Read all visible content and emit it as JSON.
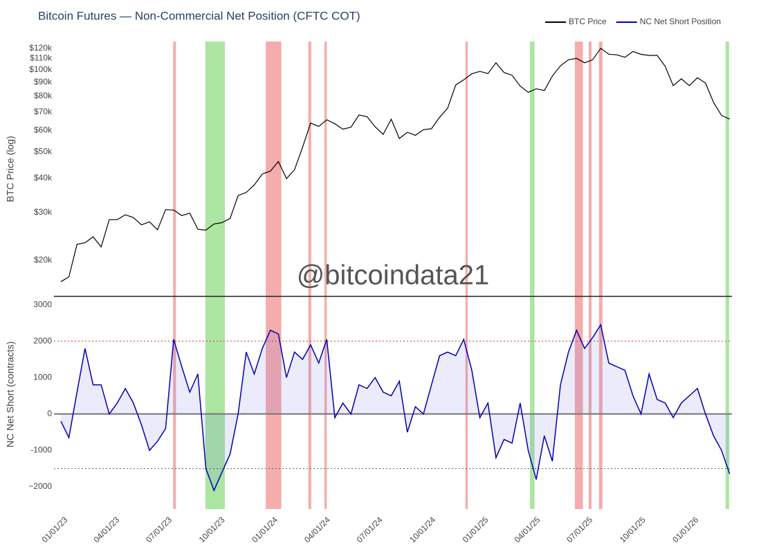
{
  "chart_data": [
    {
      "type": "line",
      "title": "Bitcoin Futures — Non-Commercial Net Position (CFTC COT)",
      "watermark": "@bitcoindata21",
      "y_label": "BTC Price (log)",
      "log_scale": true,
      "legend": "top-right",
      "ylim": [
        14750,
        127000
      ],
      "yticks": [
        {
          "value": 20000,
          "label": "$20k"
        },
        {
          "value": 30000,
          "label": "$30k"
        },
        {
          "value": 40000,
          "label": "$40k"
        },
        {
          "value": 50000,
          "label": "$50k"
        },
        {
          "value": 60000,
          "label": "$60k"
        },
        {
          "value": 70000,
          "label": "$70k"
        },
        {
          "value": 80000,
          "label": "$80k"
        },
        {
          "value": 90000,
          "label": "$90k"
        },
        {
          "value": 100000,
          "label": "$100k"
        },
        {
          "value": 110000,
          "label": "$110k"
        },
        {
          "value": 120000,
          "label": "$120k"
        }
      ],
      "x": [
        "2022-12-27",
        "2023-01-10",
        "2023-01-24",
        "2023-02-07",
        "2023-02-21",
        "2023-03-07",
        "2023-03-21",
        "2023-04-04",
        "2023-04-18",
        "2023-05-02",
        "2023-05-16",
        "2023-05-30",
        "2023-06-13",
        "2023-06-27",
        "2023-07-11",
        "2023-07-25",
        "2023-08-08",
        "2023-08-22",
        "2023-09-05",
        "2023-09-19",
        "2023-10-03",
        "2023-10-17",
        "2023-10-31",
        "2023-11-14",
        "2023-11-28",
        "2023-12-12",
        "2023-12-26",
        "2024-01-09",
        "2024-01-23",
        "2024-02-06",
        "2024-02-20",
        "2024-03-05",
        "2024-03-19",
        "2024-04-02",
        "2024-04-16",
        "2024-04-30",
        "2024-05-14",
        "2024-05-28",
        "2024-06-11",
        "2024-06-25",
        "2024-07-09",
        "2024-07-23",
        "2024-08-06",
        "2024-08-20",
        "2024-09-03",
        "2024-09-17",
        "2024-10-01",
        "2024-10-15",
        "2024-10-29",
        "2024-11-12",
        "2024-11-26",
        "2024-12-10",
        "2024-12-24",
        "2025-01-07",
        "2025-01-21",
        "2025-02-04",
        "2025-02-18",
        "2025-03-04",
        "2025-03-18",
        "2025-04-01",
        "2025-04-15",
        "2025-04-29",
        "2025-05-13",
        "2025-05-27",
        "2025-06-10",
        "2025-06-24",
        "2025-07-08",
        "2025-07-22",
        "2025-08-05",
        "2025-08-19",
        "2025-09-02",
        "2025-09-16",
        "2025-09-30",
        "2025-10-14",
        "2025-10-28",
        "2025-11-11",
        "2025-11-25",
        "2025-12-09",
        "2025-12-23",
        "2026-01-06",
        "2026-01-20",
        "2026-02-03",
        "2026-02-17",
        "2026-03-03"
      ],
      "series": [
        {
          "name": "BTC Price",
          "color": "#000000",
          "values": [
            16700,
            17400,
            22900,
            23200,
            24400,
            22400,
            28200,
            28200,
            29400,
            28700,
            27000,
            27700,
            25900,
            30700,
            30600,
            29200,
            29800,
            26000,
            25800,
            27200,
            27500,
            28500,
            34600,
            35500,
            37800,
            41500,
            42500,
            46100,
            39900,
            43000,
            52000,
            63800,
            62000,
            65600,
            63400,
            60600,
            61600,
            68300,
            67300,
            61800,
            58000,
            65900,
            56000,
            59000,
            57500,
            60300,
            60800,
            67000,
            72300,
            88000,
            91900,
            96700,
            98700,
            96900,
            106100,
            97800,
            95500,
            87200,
            82700,
            85200,
            84000,
            94900,
            103500,
            108900,
            110200,
            106100,
            108900,
            119900,
            114100,
            113500,
            111200,
            116800,
            114000,
            113000,
            113000,
            103000,
            87500,
            92700,
            87500,
            93500,
            89500,
            76000,
            68000,
            66000
          ]
        }
      ],
      "bands": [
        {
          "start": "2023-07-10",
          "end": "2023-07-15",
          "color": "#f08080"
        },
        {
          "start": "2023-09-04",
          "end": "2023-10-08",
          "color": "#7fd870"
        },
        {
          "start": "2023-12-18",
          "end": "2024-01-14",
          "color": "#f08080"
        },
        {
          "start": "2024-03-01",
          "end": "2024-03-06",
          "color": "#f08080"
        },
        {
          "start": "2024-03-29",
          "end": "2024-04-02",
          "color": "#f08080"
        },
        {
          "start": "2024-11-29",
          "end": "2024-12-03",
          "color": "#f08080"
        },
        {
          "start": "2025-03-21",
          "end": "2025-03-29",
          "color": "#7fd870"
        },
        {
          "start": "2025-06-07",
          "end": "2025-06-21",
          "color": "#f08080"
        },
        {
          "start": "2025-07-01",
          "end": "2025-07-06",
          "color": "#f08080"
        },
        {
          "start": "2025-07-19",
          "end": "2025-07-25",
          "color": "#f08080"
        },
        {
          "start": "2026-02-24",
          "end": "2026-03-02",
          "color": "#7fd870"
        }
      ]
    },
    {
      "type": "area",
      "y_label": "NC Net Short (contracts)",
      "xlim": [
        "2022-12-15",
        "2026-03-07"
      ],
      "xticks": [
        {
          "value": "2023-01-01",
          "label": "01/01/23"
        },
        {
          "value": "2023-04-01",
          "label": "04/01/23"
        },
        {
          "value": "2023-07-01",
          "label": "07/01/23"
        },
        {
          "value": "2023-10-01",
          "label": "10/01/23"
        },
        {
          "value": "2024-01-01",
          "label": "01/01/24"
        },
        {
          "value": "2024-04-01",
          "label": "04/01/24"
        },
        {
          "value": "2024-07-01",
          "label": "07/01/24"
        },
        {
          "value": "2024-10-01",
          "label": "10/01/24"
        },
        {
          "value": "2025-01-01",
          "label": "01/01/25"
        },
        {
          "value": "2025-04-01",
          "label": "04/01/25"
        },
        {
          "value": "2025-07-01",
          "label": "07/01/25"
        },
        {
          "value": "2025-10-01",
          "label": "10/01/25"
        },
        {
          "value": "2026-01-01",
          "label": "01/01/26"
        }
      ],
      "ylim": [
        -2610,
        3230
      ],
      "yticks": [
        3000,
        2000,
        1000,
        0,
        -1000,
        {
          "value": -2000,
          "label": "−2000"
        }
      ],
      "reference_lines": [
        {
          "value": 2000,
          "color": "#c0392b",
          "style": "dotted"
        },
        {
          "value": 0,
          "color": "#777777",
          "style": "solid"
        },
        {
          "value": -1500,
          "color": "#2e7d32",
          "style": "dotted"
        }
      ],
      "series": [
        {
          "name": "NC Net Short Position",
          "color": "#0000b0",
          "fill": "rgba(90,90,220,0.12)",
          "values": [
            -200,
            -650,
            600,
            1800,
            800,
            800,
            0,
            300,
            700,
            300,
            -300,
            -1000,
            -750,
            -400,
            2050,
            1300,
            600,
            1100,
            -1500,
            -2100,
            -1600,
            -1100,
            0,
            1700,
            1100,
            1800,
            2300,
            2200,
            1000,
            1700,
            1500,
            1900,
            1400,
            2050,
            -100,
            300,
            0,
            800,
            700,
            1000,
            600,
            500,
            900,
            -500,
            200,
            0,
            800,
            1600,
            1700,
            1600,
            2050,
            1200,
            -100,
            300,
            -1200,
            -700,
            -800,
            300,
            -1000,
            -1800,
            -600,
            -1300,
            800,
            1700,
            2300,
            1800,
            2100,
            2450,
            1400,
            1300,
            1200,
            500,
            0,
            1100,
            400,
            300,
            -100,
            300,
            500,
            700,
            0,
            -600,
            -1000,
            -1650
          ]
        }
      ]
    }
  ]
}
